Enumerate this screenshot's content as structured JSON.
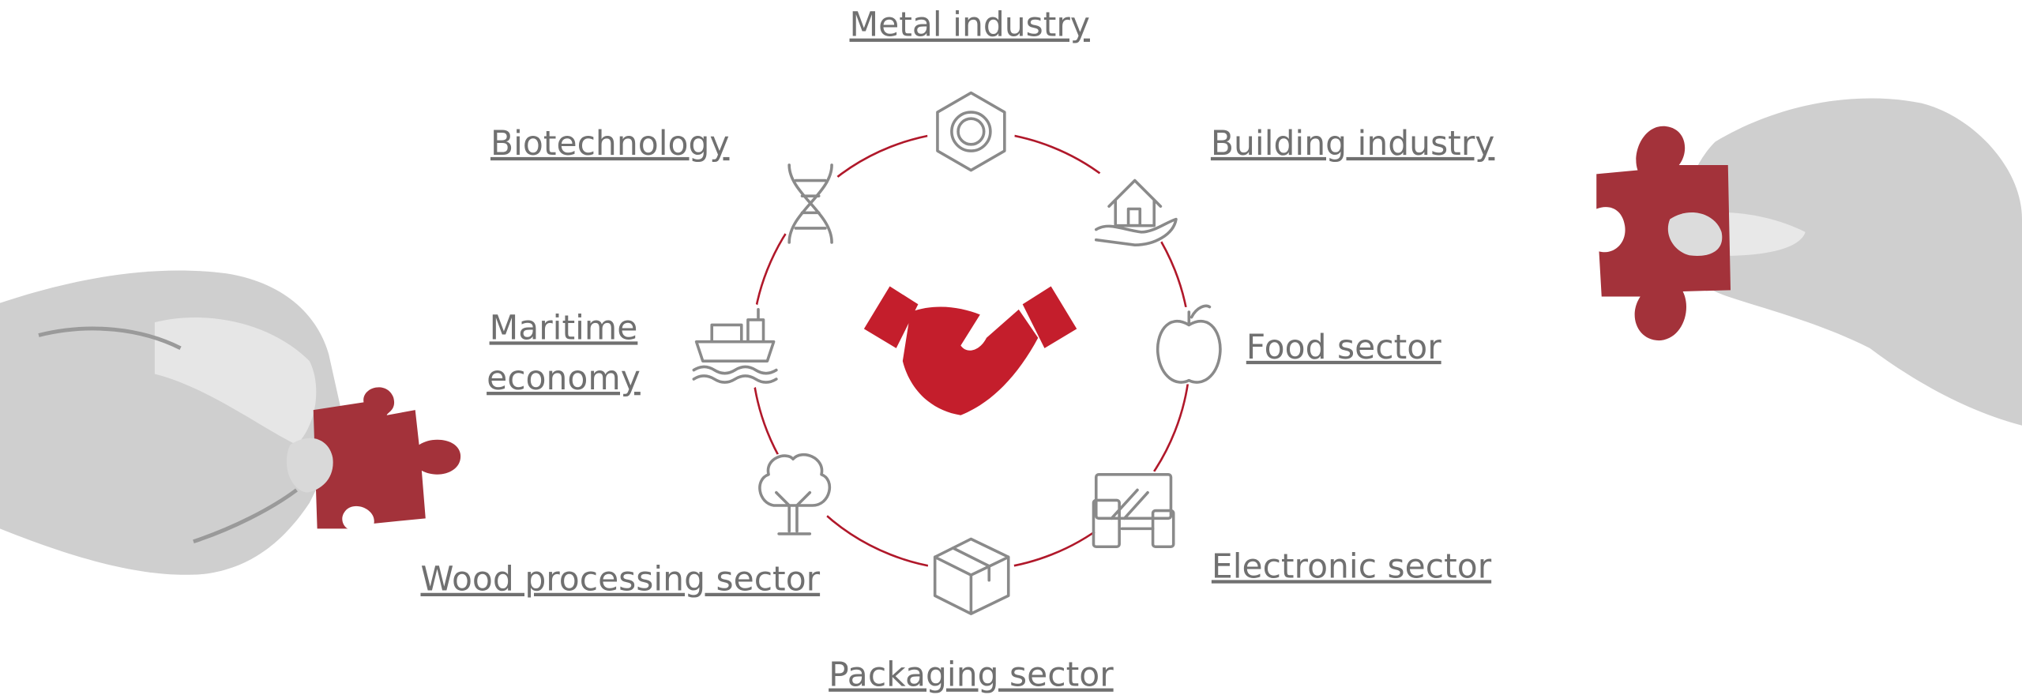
{
  "sectors": [
    {
      "label": "Metal industry"
    },
    {
      "label": "Building industry"
    },
    {
      "label": "Food sector"
    },
    {
      "label": "Electronic sector"
    },
    {
      "label": "Packaging sector"
    },
    {
      "label": "Wood processing sector"
    },
    {
      "label": "Maritime",
      "label_line2": "economy"
    },
    {
      "label": "Biotechnology"
    }
  ]
}
